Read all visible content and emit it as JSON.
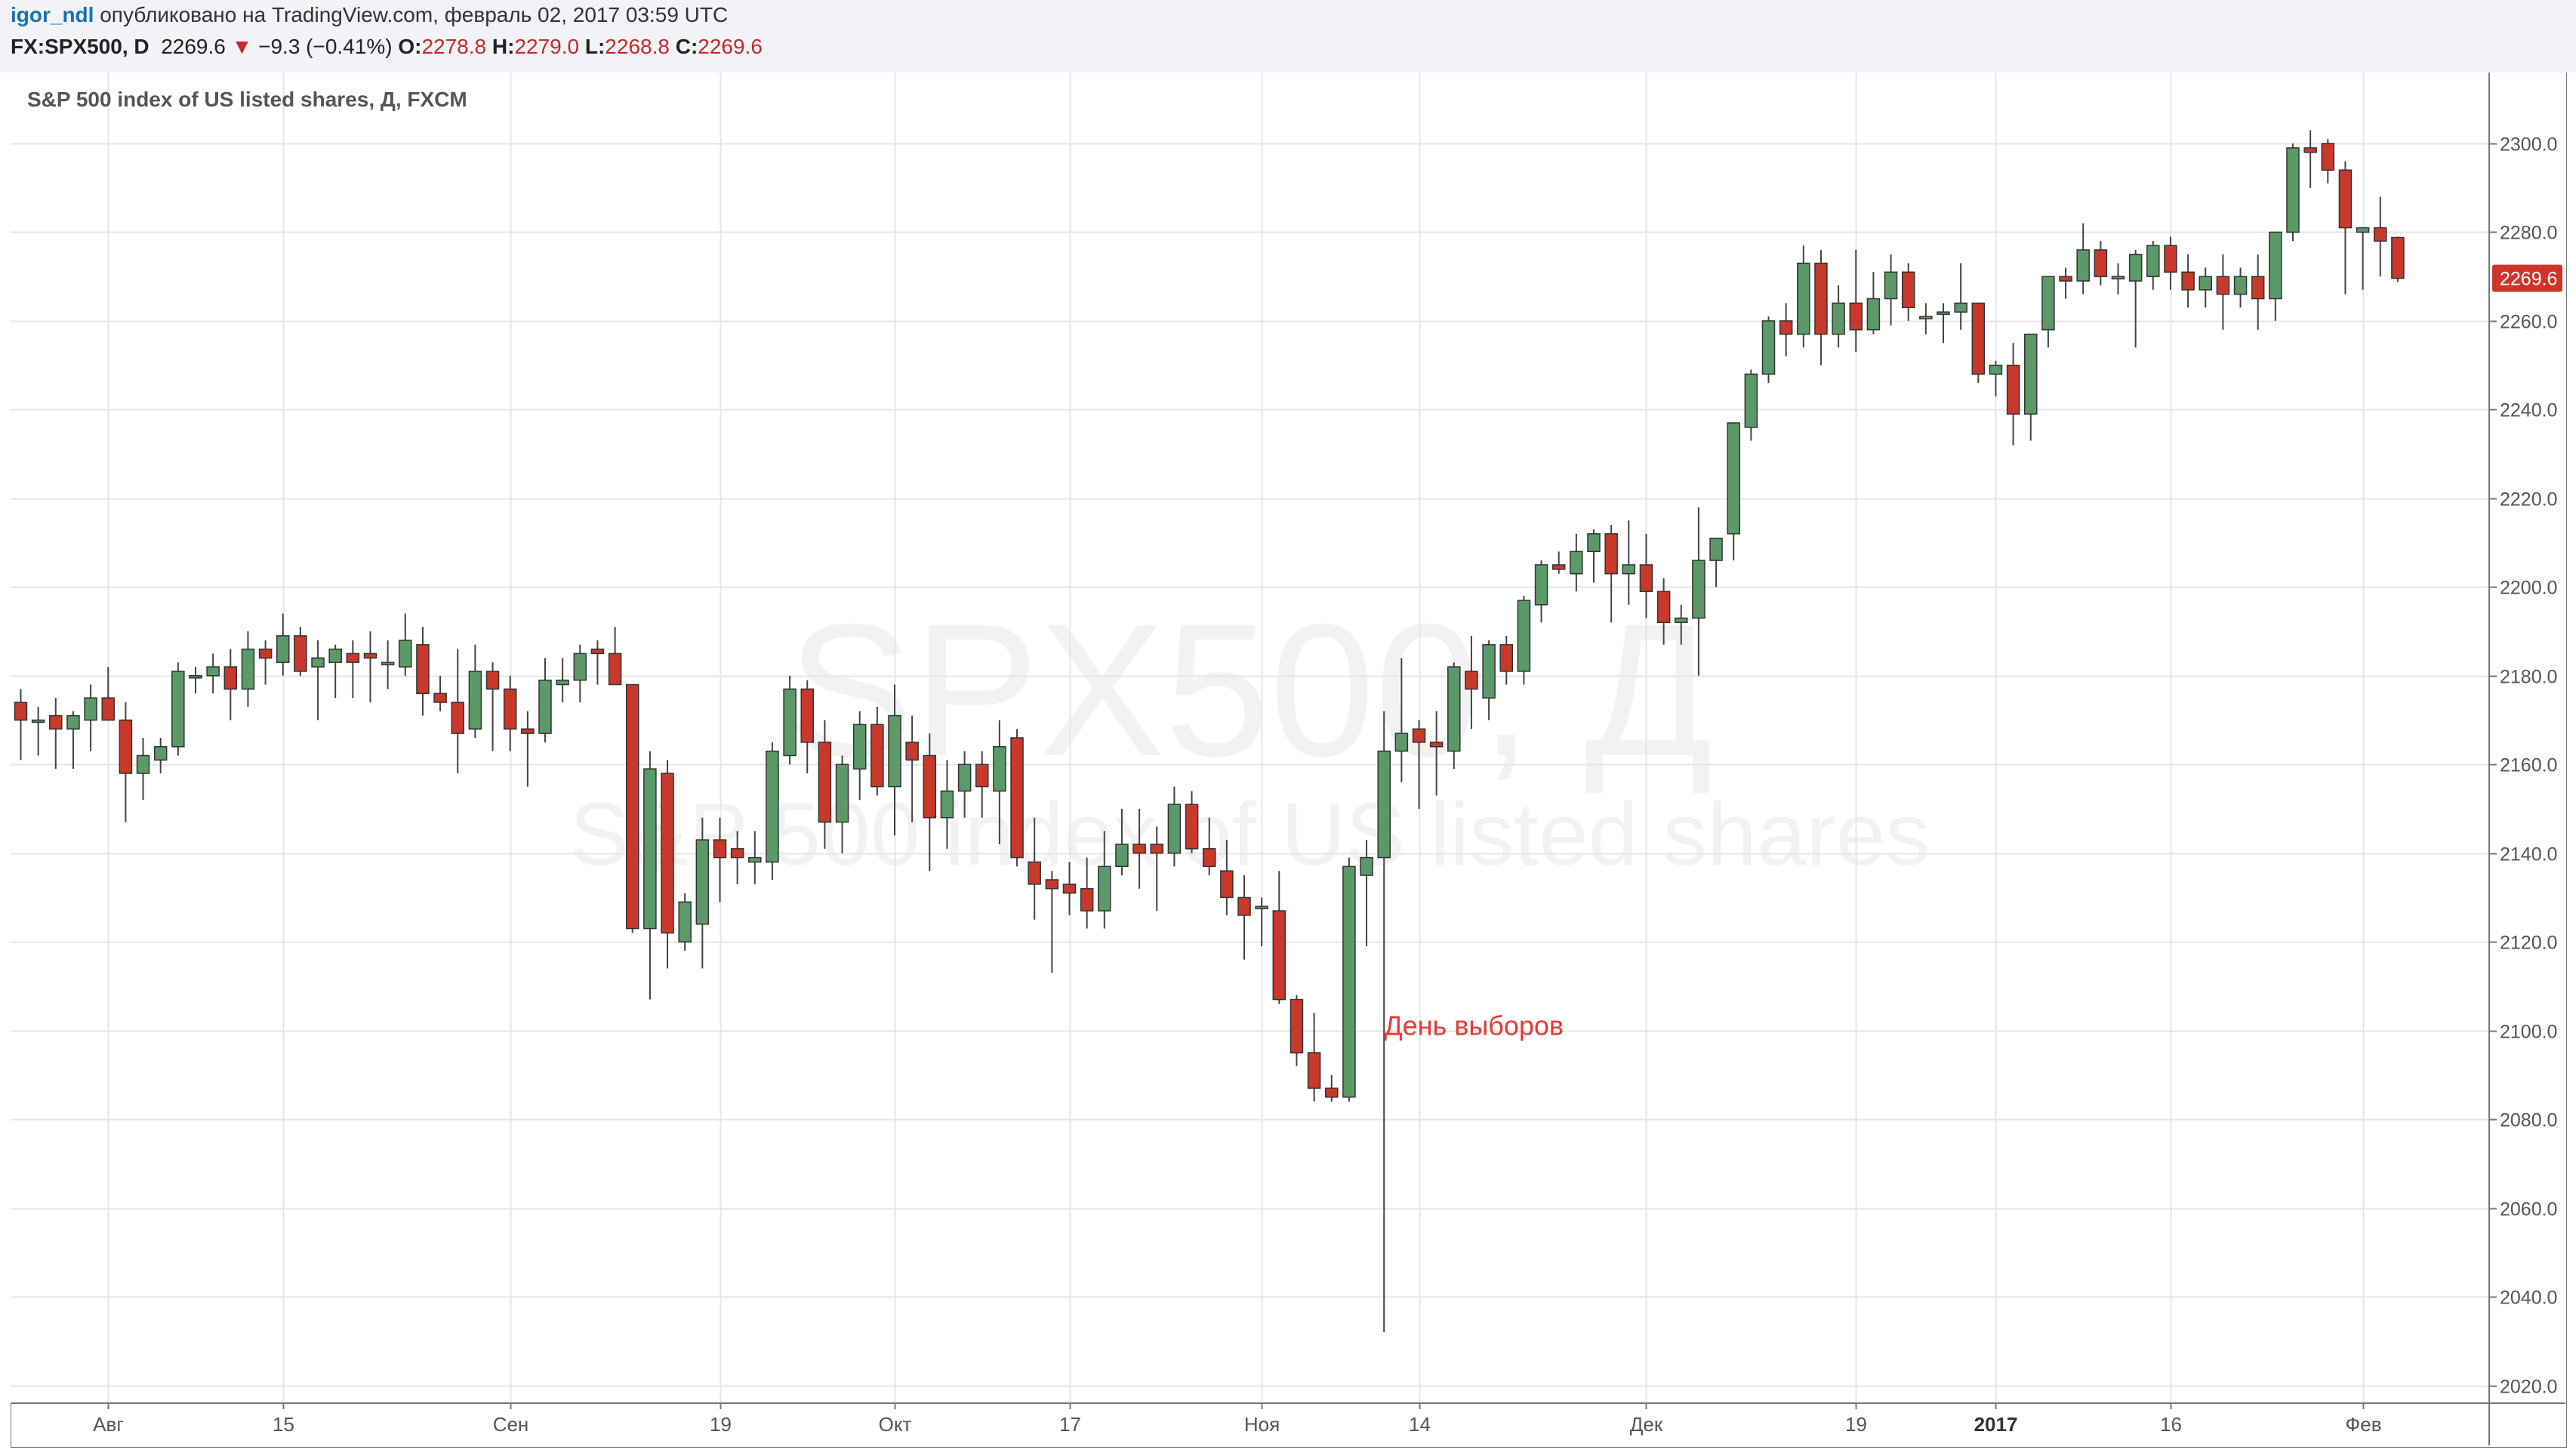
{
  "header": {
    "author": "igor_ndl",
    "published": "опубликовано на TradingView.com, февраль 02, 2017 03:59 UTC",
    "symbol": "FX:SPX500, D",
    "last_price": "2269.6",
    "arrow": "▼",
    "change": "−9.3 (−0.41%)",
    "o_label": "O:",
    "o_value": "2278.8",
    "h_label": "H:",
    "h_value": "2279.0",
    "l_label": "L:",
    "l_value": "2268.8",
    "c_label": "C:",
    "c_value": "2269.6"
  },
  "colors": {
    "up": "#5b9a68",
    "down": "#c8392b",
    "grid": "#e6e6e6",
    "price_label_bg": "#d0352b",
    "annotation": "#e53935",
    "watermark": "#f2f2f2"
  },
  "chart_data": {
    "type": "candlestick",
    "title": "S&P 500 index of US listed shares, Д, FXCM",
    "watermark_line1": "SPX500, Д",
    "watermark_line2": "S&P 500 index of US listed shares",
    "ylim": [
      2016,
      2316
    ],
    "y_ticks": [
      "2020.0",
      "2040.0",
      "2060.0",
      "2080.0",
      "2100.0",
      "2120.0",
      "2140.0",
      "2160.0",
      "2180.0",
      "2200.0",
      "2220.0",
      "2240.0",
      "2260.0",
      "2280.0",
      "2300.0"
    ],
    "x_ticks": [
      {
        "index": 5,
        "label": "Авг",
        "bold": false
      },
      {
        "index": 15,
        "label": "15",
        "bold": false
      },
      {
        "index": 28,
        "label": "Сен",
        "bold": false
      },
      {
        "index": 40,
        "label": "19",
        "bold": false
      },
      {
        "index": 50,
        "label": "Окт",
        "bold": false
      },
      {
        "index": 60,
        "label": "17",
        "bold": false
      },
      {
        "index": 71,
        "label": "Ноя",
        "bold": false
      },
      {
        "index": 80,
        "label": "14",
        "bold": false
      },
      {
        "index": 93,
        "label": "Дек",
        "bold": false
      },
      {
        "index": 105,
        "label": "19",
        "bold": false
      },
      {
        "index": 113,
        "label": "2017",
        "bold": true
      },
      {
        "index": 123,
        "label": "16",
        "bold": false
      },
      {
        "index": 134,
        "label": "Фев",
        "bold": false
      }
    ],
    "last_price_label": "2269.6",
    "last_price": 2269.6,
    "annotation": {
      "text": "День выборов",
      "index": 78,
      "y": 2099
    },
    "ohlc": [
      [
        2174,
        2177,
        2161,
        2170
      ],
      [
        2170,
        2173,
        2162,
        2170
      ],
      [
        2171,
        2175,
        2159,
        2168
      ],
      [
        2168,
        2172,
        2159,
        2171
      ],
      [
        2170,
        2178,
        2163,
        2175
      ],
      [
        2175,
        2182,
        2170,
        2170
      ],
      [
        2170,
        2174,
        2147,
        2158
      ],
      [
        2158,
        2166,
        2152,
        2162
      ],
      [
        2161,
        2166,
        2158,
        2164
      ],
      [
        2164,
        2183,
        2162,
        2181
      ],
      [
        2180,
        2182,
        2176,
        2180
      ],
      [
        2180,
        2185,
        2176,
        2182
      ],
      [
        2182,
        2186,
        2170,
        2177
      ],
      [
        2177,
        2190,
        2173,
        2186
      ],
      [
        2186,
        2188,
        2178,
        2184
      ],
      [
        2183,
        2194,
        2180,
        2189
      ],
      [
        2189,
        2191,
        2180,
        2181
      ],
      [
        2182,
        2188,
        2170,
        2184
      ],
      [
        2183,
        2187,
        2175,
        2186
      ],
      [
        2185,
        2188,
        2175,
        2183
      ],
      [
        2185,
        2190,
        2174,
        2184
      ],
      [
        2183,
        2188,
        2177,
        2183
      ],
      [
        2182,
        2194,
        2180,
        2188
      ],
      [
        2187,
        2191,
        2171,
        2176
      ],
      [
        2176,
        2180,
        2172,
        2174
      ],
      [
        2174,
        2186,
        2158,
        2167
      ],
      [
        2168,
        2187,
        2166,
        2181
      ],
      [
        2181,
        2183,
        2163,
        2177
      ],
      [
        2177,
        2180,
        2163,
        2168
      ],
      [
        2168,
        2172,
        2155,
        2167
      ],
      [
        2167,
        2184,
        2165,
        2179
      ],
      [
        2178,
        2184,
        2174,
        2179
      ],
      [
        2179,
        2187,
        2174,
        2185
      ],
      [
        2186,
        2188,
        2178,
        2185
      ],
      [
        2185,
        2191,
        2180,
        2178
      ],
      [
        2178,
        2178,
        2122,
        2123
      ],
      [
        2123,
        2163,
        2107,
        2159
      ],
      [
        2158,
        2161,
        2114,
        2122
      ],
      [
        2120,
        2131,
        2118,
        2129
      ],
      [
        2124,
        2148,
        2114,
        2143
      ],
      [
        2143,
        2148,
        2129,
        2139
      ],
      [
        2141,
        2145,
        2133,
        2139
      ],
      [
        2138,
        2145,
        2133,
        2139
      ],
      [
        2138,
        2165,
        2134,
        2163
      ],
      [
        2162,
        2180,
        2160,
        2177
      ],
      [
        2177,
        2179,
        2158,
        2165
      ],
      [
        2165,
        2170,
        2141,
        2147
      ],
      [
        2147,
        2162,
        2140,
        2160
      ],
      [
        2159,
        2172,
        2152,
        2169
      ],
      [
        2169,
        2173,
        2153,
        2155
      ],
      [
        2155,
        2178,
        2144,
        2171
      ],
      [
        2165,
        2171,
        2147,
        2161
      ],
      [
        2162,
        2167,
        2136,
        2148
      ],
      [
        2148,
        2161,
        2141,
        2154
      ],
      [
        2154,
        2163,
        2148,
        2160
      ],
      [
        2160,
        2163,
        2148,
        2155
      ],
      [
        2154,
        2170,
        2142,
        2164
      ],
      [
        2166,
        2168,
        2137,
        2139
      ],
      [
        2138,
        2148,
        2125,
        2133
      ],
      [
        2134,
        2136,
        2113,
        2132
      ],
      [
        2133,
        2138,
        2126,
        2131
      ],
      [
        2132,
        2139,
        2123,
        2127
      ],
      [
        2127,
        2145,
        2123,
        2137
      ],
      [
        2137,
        2150,
        2135,
        2142
      ],
      [
        2142,
        2150,
        2132,
        2140
      ],
      [
        2142,
        2146,
        2127,
        2140
      ],
      [
        2140,
        2155,
        2137,
        2151
      ],
      [
        2151,
        2154,
        2140,
        2141
      ],
      [
        2141,
        2148,
        2135,
        2137
      ],
      [
        2136,
        2143,
        2126,
        2130
      ],
      [
        2130,
        2135,
        2116,
        2126
      ],
      [
        2128,
        2130,
        2119,
        2128
      ],
      [
        2127,
        2136,
        2106,
        2107
      ],
      [
        2107,
        2108,
        2092,
        2095
      ],
      [
        2095,
        2104,
        2084,
        2087
      ],
      [
        2087,
        2090,
        2084,
        2085
      ],
      [
        2085,
        2139,
        2084,
        2137
      ],
      [
        2135,
        2143,
        2119,
        2139
      ],
      [
        2139,
        2172,
        2032,
        2163
      ],
      [
        2163,
        2184,
        2156,
        2167
      ],
      [
        2168,
        2170,
        2150,
        2165
      ],
      [
        2165,
        2172,
        2153,
        2164
      ],
      [
        2163,
        2183,
        2159,
        2182
      ],
      [
        2181,
        2189,
        2168,
        2177
      ],
      [
        2175,
        2188,
        2170,
        2187
      ],
      [
        2187,
        2189,
        2178,
        2181
      ],
      [
        2181,
        2198,
        2178,
        2197
      ],
      [
        2196,
        2206,
        2192,
        2205
      ],
      [
        2205,
        2208,
        2203,
        2204
      ],
      [
        2203,
        2212,
        2199,
        2208
      ],
      [
        2208,
        2213,
        2201,
        2212
      ],
      [
        2212,
        2214,
        2192,
        2203
      ],
      [
        2203,
        2215,
        2196,
        2205
      ],
      [
        2205,
        2212,
        2193,
        2199
      ],
      [
        2199,
        2202,
        2187,
        2192
      ],
      [
        2192,
        2196,
        2187,
        2193
      ],
      [
        2193,
        2218,
        2180,
        2206
      ],
      [
        2206,
        2210,
        2200,
        2211
      ],
      [
        2212,
        2237,
        2206,
        2237
      ],
      [
        2236,
        2249,
        2233,
        2248
      ],
      [
        2248,
        2261,
        2246,
        2260
      ],
      [
        2260,
        2264,
        2252,
        2257
      ],
      [
        2257,
        2277,
        2254,
        2273
      ],
      [
        2273,
        2276,
        2250,
        2257
      ],
      [
        2257,
        2268,
        2254,
        2264
      ],
      [
        2264,
        2276,
        2253,
        2258
      ],
      [
        2258,
        2271,
        2257,
        2265
      ],
      [
        2265,
        2275,
        2259,
        2271
      ],
      [
        2271,
        2273,
        2260,
        2263
      ],
      [
        2261,
        2264,
        2257,
        2261
      ],
      [
        2262,
        2264,
        2255,
        2262
      ],
      [
        2262,
        2273,
        2258,
        2264
      ],
      [
        2264,
        2264,
        2246,
        2248
      ],
      [
        2248,
        2251,
        2243,
        2250
      ],
      [
        2250,
        2255,
        2232,
        2239
      ],
      [
        2239,
        2257,
        2233,
        2257
      ],
      [
        2258,
        2270,
        2254,
        2270
      ],
      [
        2270,
        2272,
        2265,
        2269
      ],
      [
        2269,
        2282,
        2266,
        2276
      ],
      [
        2276,
        2278,
        2268,
        2270
      ],
      [
        2270,
        2273,
        2266,
        2270
      ],
      [
        2269,
        2276,
        2254,
        2275
      ],
      [
        2270,
        2278,
        2267,
        2277
      ],
      [
        2277,
        2279,
        2267,
        2271
      ],
      [
        2271,
        2275,
        2263,
        2267
      ],
      [
        2267,
        2272,
        2263,
        2270
      ],
      [
        2270,
        2275,
        2258,
        2266
      ],
      [
        2266,
        2272,
        2263,
        2270
      ],
      [
        2270,
        2275,
        2258,
        2265
      ],
      [
        2265,
        2280,
        2260,
        2280
      ],
      [
        2280,
        2300,
        2278,
        2299
      ],
      [
        2299,
        2303,
        2290,
        2298
      ],
      [
        2300,
        2301,
        2291,
        2294
      ],
      [
        2294,
        2296,
        2266,
        2281
      ],
      [
        2280,
        2281,
        2267,
        2281
      ],
      [
        2281,
        2288,
        2270,
        2278
      ],
      [
        2278.8,
        2279,
        2268.8,
        2269.6
      ]
    ]
  }
}
